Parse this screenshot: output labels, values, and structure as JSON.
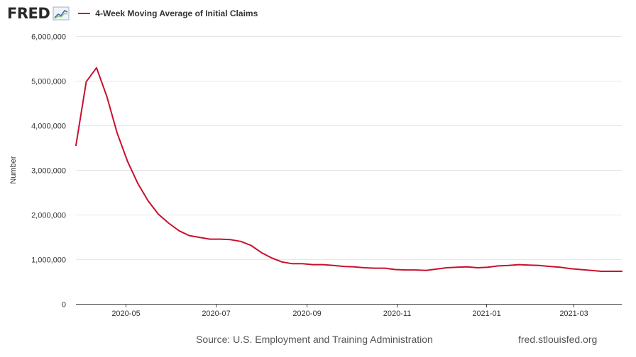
{
  "header": {
    "logo_text": "FRED",
    "legend_label": "4-Week Moving Average of Initial Claims",
    "series_color": "#c8102e"
  },
  "footer": {
    "source": "Source: U.S. Employment and Training Administration",
    "url": "fred.stlouisfed.org"
  },
  "chart_data": {
    "type": "line",
    "title": "4-Week Moving Average of Initial Claims",
    "xlabel": "",
    "ylabel": "Number",
    "x_range": [
      "2020-03-28",
      "2021-04-03"
    ],
    "ylim": [
      0,
      6000000
    ],
    "y_ticks": [
      0,
      1000000,
      2000000,
      3000000,
      4000000,
      5000000,
      6000000
    ],
    "y_tick_labels": [
      "0",
      "1,000,000",
      "2,000,000",
      "3,000,000",
      "4,000,000",
      "5,000,000",
      "6,000,000"
    ],
    "x_ticks": [
      "2020-05-01",
      "2020-07-01",
      "2020-09-01",
      "2020-11-01",
      "2021-01-01",
      "2021-03-01"
    ],
    "x_tick_labels": [
      "2020-05",
      "2020-07",
      "2020-09",
      "2020-11",
      "2021-01",
      "2021-03"
    ],
    "grid": true,
    "series": [
      {
        "name": "4-Week Moving Average of Initial Claims",
        "x": [
          "2020-03-28",
          "2020-04-04",
          "2020-04-11",
          "2020-04-18",
          "2020-04-25",
          "2020-05-02",
          "2020-05-09",
          "2020-05-16",
          "2020-05-23",
          "2020-05-30",
          "2020-06-06",
          "2020-06-13",
          "2020-06-20",
          "2020-06-27",
          "2020-07-04",
          "2020-07-11",
          "2020-07-18",
          "2020-07-25",
          "2020-08-01",
          "2020-08-08",
          "2020-08-15",
          "2020-08-22",
          "2020-08-29",
          "2020-09-05",
          "2020-09-12",
          "2020-09-19",
          "2020-09-26",
          "2020-10-03",
          "2020-10-10",
          "2020-10-17",
          "2020-10-24",
          "2020-10-31",
          "2020-11-07",
          "2020-11-14",
          "2020-11-21",
          "2020-11-28",
          "2020-12-05",
          "2020-12-12",
          "2020-12-19",
          "2020-12-26",
          "2021-01-02",
          "2021-01-09",
          "2021-01-16",
          "2021-01-23",
          "2021-01-30",
          "2021-02-06",
          "2021-02-13",
          "2021-02-20",
          "2021-02-27",
          "2021-03-06",
          "2021-03-13",
          "2021-03-20",
          "2021-03-27",
          "2021-04-03"
        ],
        "values": [
          3550000,
          4980000,
          5290000,
          4650000,
          3830000,
          3200000,
          2700000,
          2310000,
          2010000,
          1810000,
          1640000,
          1530000,
          1490000,
          1450000,
          1450000,
          1440000,
          1400000,
          1310000,
          1150000,
          1030000,
          940000,
          900000,
          900000,
          880000,
          880000,
          860000,
          840000,
          830000,
          810000,
          800000,
          800000,
          770000,
          760000,
          760000,
          750000,
          780000,
          810000,
          820000,
          830000,
          810000,
          820000,
          850000,
          860000,
          880000,
          870000,
          860000,
          840000,
          820000,
          790000,
          770000,
          750000,
          730000,
          730000,
          730000
        ],
        "color": "#c8102e"
      }
    ]
  }
}
